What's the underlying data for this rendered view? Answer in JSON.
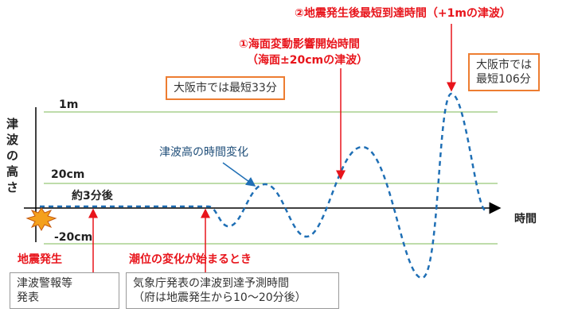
{
  "header": {
    "latest_arrival": "②地震発生後最短到達時間（+1mの津波）",
    "impact_start": "①海面変動影響開始時間",
    "impact_start_note": "（海面±20cmの津波）"
  },
  "boxes": {
    "osaka_33": "大阪市では最短33分",
    "osaka_106": [
      "大阪市では",
      "最短106分"
    ],
    "warning": [
      "津波警報等",
      "発表"
    ],
    "jma": [
      "気象庁発表の津波到達予測時間",
      "（府は地震発生から10～20分後）"
    ]
  },
  "axis": {
    "y_label": "津波の高さ",
    "x_label": "時間",
    "levels": [
      "1m",
      "20cm",
      "-20cm"
    ]
  },
  "labels": {
    "wave": "津波高の時間変化",
    "about3": "約3分後",
    "quake": "地震発生",
    "tide_change": "潮位の変化が始まるとき"
  }
}
